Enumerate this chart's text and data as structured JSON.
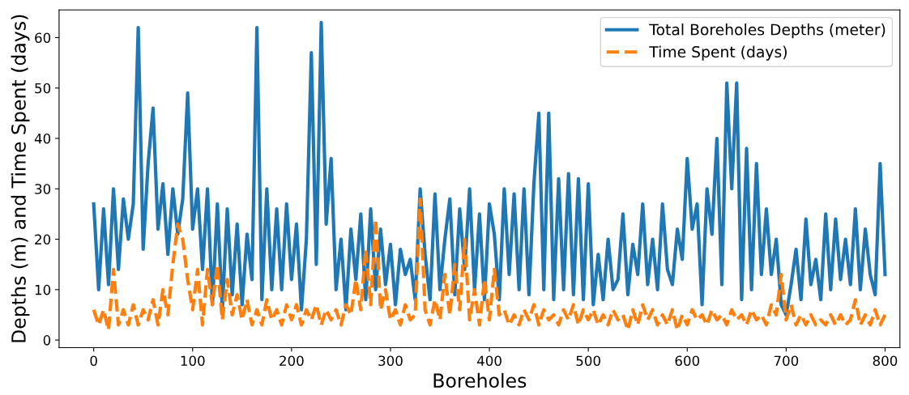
{
  "chart_data": {
    "type": "line",
    "xlabel": "Boreholes",
    "ylabel": "Depths (m) and Time Spent (days)",
    "x": [
      0,
      5,
      10,
      15,
      20,
      25,
      30,
      35,
      40,
      45,
      50,
      55,
      60,
      65,
      70,
      75,
      80,
      85,
      90,
      95,
      100,
      105,
      110,
      115,
      120,
      125,
      130,
      135,
      140,
      145,
      150,
      155,
      160,
      165,
      170,
      175,
      180,
      185,
      190,
      195,
      200,
      205,
      210,
      215,
      220,
      225,
      230,
      235,
      240,
      245,
      250,
      255,
      260,
      265,
      270,
      275,
      280,
      285,
      290,
      295,
      300,
      305,
      310,
      315,
      320,
      325,
      330,
      335,
      340,
      345,
      350,
      355,
      360,
      365,
      370,
      375,
      380,
      385,
      390,
      395,
      400,
      405,
      410,
      415,
      420,
      425,
      430,
      435,
      440,
      445,
      450,
      455,
      460,
      465,
      470,
      475,
      480,
      485,
      490,
      495,
      500,
      505,
      510,
      515,
      520,
      525,
      530,
      535,
      540,
      545,
      550,
      555,
      560,
      565,
      570,
      575,
      580,
      585,
      590,
      595,
      600,
      605,
      610,
      615,
      620,
      625,
      630,
      635,
      640,
      645,
      650,
      655,
      660,
      665,
      670,
      675,
      680,
      685,
      690,
      695,
      700,
      705,
      710,
      715,
      720,
      725,
      730,
      735,
      740,
      745,
      750,
      755,
      760,
      765,
      770,
      775,
      780,
      785,
      790,
      795,
      800
    ],
    "series": [
      {
        "name": "Total Boreholes Depths (meter)",
        "color": "#1f77b4",
        "line_style": "solid",
        "values": [
          27,
          10,
          26,
          11,
          30,
          14,
          28,
          20,
          27,
          62,
          18,
          35,
          46,
          22,
          31,
          17,
          30,
          21,
          28,
          49,
          22,
          30,
          14,
          30,
          7,
          27,
          6,
          26,
          9,
          23,
          7,
          21,
          12,
          62,
          8,
          30,
          10,
          26,
          10,
          27,
          12,
          23,
          6,
          20,
          57,
          15,
          63,
          23,
          36,
          10,
          20,
          6,
          22,
          12,
          25,
          8,
          26,
          10,
          22,
          11,
          19,
          7,
          18,
          13,
          16,
          8,
          30,
          17,
          8,
          29,
          10,
          20,
          28,
          9,
          26,
          14,
          30,
          10,
          25,
          8,
          27,
          21,
          8,
          30,
          13,
          29,
          10,
          30,
          9,
          31,
          45,
          10,
          45,
          8,
          32,
          10,
          33,
          9,
          32,
          8,
          31,
          7,
          17,
          8,
          20,
          10,
          12,
          25,
          9,
          19,
          13,
          27,
          11,
          20,
          10,
          27,
          14,
          11,
          22,
          16,
          36,
          22,
          27,
          7,
          30,
          21,
          40,
          11,
          51,
          30,
          51,
          8,
          38,
          10,
          35,
          13,
          26,
          13,
          20,
          7,
          5,
          11,
          18,
          8,
          24,
          11,
          16,
          8,
          25,
          10,
          24,
          12,
          20,
          11,
          26,
          10,
          22,
          13,
          9,
          35,
          13
        ]
      },
      {
        "name": "Time Spent (days)",
        "color": "#ff7f0e",
        "line_style": "dashed",
        "values": [
          6,
          3,
          6,
          2,
          14,
          3,
          6,
          3,
          7,
          3,
          6,
          4,
          8,
          3,
          10,
          5,
          15,
          23,
          20,
          12,
          6,
          14,
          3,
          14,
          7,
          15,
          4,
          12,
          5,
          9,
          4,
          8,
          3,
          6,
          3,
          8,
          4,
          6,
          3,
          7,
          4,
          7,
          3,
          6,
          4,
          7,
          3,
          6,
          4,
          6,
          3,
          7,
          5,
          12,
          6,
          18,
          7,
          24,
          6,
          10,
          4,
          6,
          3,
          7,
          4,
          5,
          28,
          6,
          3,
          8,
          4,
          13,
          5,
          15,
          6,
          20,
          4,
          10,
          3,
          12,
          4,
          14,
          5,
          6,
          3,
          5,
          3,
          6,
          4,
          7,
          3,
          6,
          4,
          5,
          3,
          6,
          4,
          7,
          3,
          6,
          4,
          6,
          3,
          5,
          3,
          6,
          4,
          5,
          2,
          6,
          3,
          7,
          4,
          6,
          3,
          5,
          3,
          6,
          2,
          5,
          3,
          6,
          4,
          5,
          3,
          6,
          4,
          5,
          3,
          6,
          4,
          5,
          3,
          6,
          4,
          5,
          3,
          7,
          5,
          13,
          4,
          7,
          3,
          5,
          3,
          5,
          3,
          4,
          3,
          5,
          3,
          5,
          3,
          4,
          8,
          3,
          5,
          3,
          6,
          3,
          5
        ]
      }
    ],
    "xlim": [
      -35,
      815
    ],
    "xticks": [
      0,
      100,
      200,
      300,
      400,
      500,
      600,
      700,
      800
    ],
    "ylim": [
      -1.5,
      65.5
    ],
    "yticks": [
      0,
      10,
      20,
      30,
      40,
      50,
      60
    ],
    "legend": "top right",
    "grid": false
  }
}
